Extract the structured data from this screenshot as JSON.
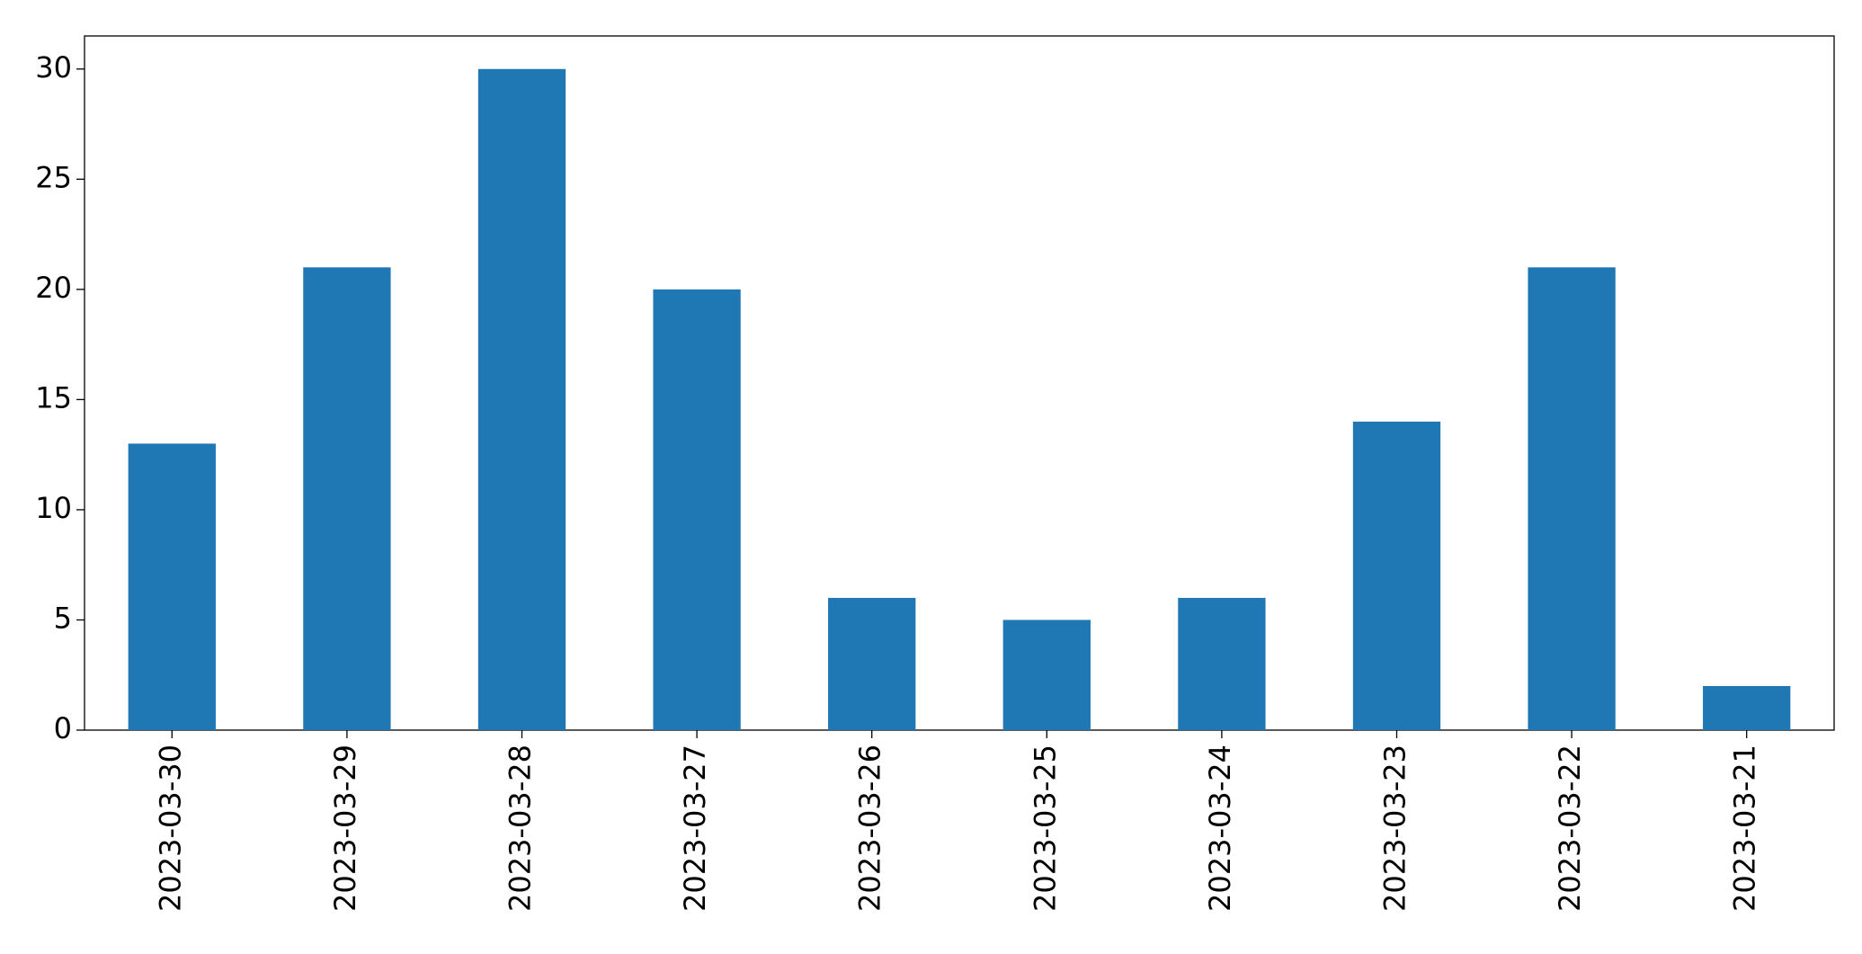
{
  "chart_data": {
    "type": "bar",
    "categories": [
      "2023-03-30",
      "2023-03-29",
      "2023-03-28",
      "2023-03-27",
      "2023-03-26",
      "2023-03-25",
      "2023-03-24",
      "2023-03-23",
      "2023-03-22",
      "2023-03-21"
    ],
    "values": [
      13,
      21,
      30,
      20,
      6,
      5,
      6,
      14,
      21,
      2
    ],
    "color": "#1f77b4",
    "ylim": [
      0,
      31.5
    ],
    "yticks": [
      0,
      5,
      10,
      15,
      20,
      25,
      30
    ],
    "grid": false
  }
}
